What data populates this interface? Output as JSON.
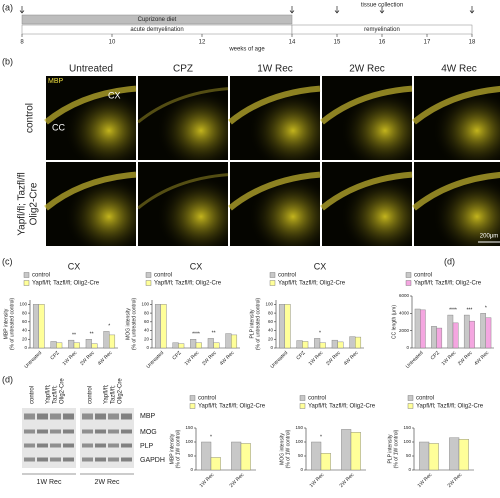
{
  "panel_labels": [
    "(a)",
    "(b)",
    "(c)",
    "(d)",
    "(d)"
  ],
  "timeline": {
    "diet": "Cuprizone diet",
    "phase1": "acute demyelination",
    "phase2": "remyelination",
    "collection": "tissue collection",
    "xlabel": "weeks of age",
    "xlim": [
      8,
      18
    ],
    "xticks": [
      8,
      10,
      12,
      14,
      15,
      16,
      17,
      18
    ],
    "arrows": [
      8,
      14,
      15,
      16,
      18
    ]
  },
  "images": {
    "columns": [
      "Untreated",
      "CPZ",
      "1W Rec",
      "2W Rec",
      "4W Rec"
    ],
    "rows": [
      "control",
      "Yapfl/fl; Tazfl/fl",
      "Olig2-Cre"
    ],
    "stain": "MBP",
    "regions": [
      "CX",
      "CC"
    ],
    "scale_bar": "200μm"
  },
  "chart_data": [
    {
      "type": "bar",
      "title": "CX",
      "ylabel": [
        "MBP intensity",
        "(% of untreated control)"
      ],
      "categories": [
        "Untreated",
        "CPZ",
        "1W Rec",
        "2W Rec",
        "4W Rec"
      ],
      "series": [
        {
          "name": "control",
          "color": "#c8c8c8",
          "values": [
            100,
            15,
            18,
            20,
            38
          ]
        },
        {
          "name": "Yapfl/fl; Tazfl/fl; Olig2-Cre",
          "color": "#ffff99",
          "values": [
            100,
            12,
            12,
            10,
            30
          ]
        }
      ],
      "ylim": [
        0,
        110
      ],
      "yticks": [
        0,
        20,
        40,
        60,
        80,
        100
      ],
      "annotations": [
        {
          "text": "**",
          "category": "1W Rec"
        },
        {
          "text": "**",
          "category": "2W Rec"
        },
        {
          "text": "*",
          "category": "4W Rec"
        }
      ]
    },
    {
      "type": "bar",
      "title": "CX",
      "ylabel": [
        "MOG intensity",
        "(% of untreated control)"
      ],
      "categories": [
        "Untreated",
        "CPZ",
        "1W Rec",
        "2W Rec",
        "4W Rec"
      ],
      "series": [
        {
          "name": "control",
          "color": "#c8c8c8",
          "values": [
            100,
            12,
            20,
            22,
            33
          ]
        },
        {
          "name": "Yapfl/fl; Tazfl/fl; Olig2-Cre",
          "color": "#ffff99",
          "values": [
            100,
            10,
            12,
            12,
            30
          ]
        }
      ],
      "ylim": [
        0,
        110
      ],
      "yticks": [
        0,
        20,
        40,
        60,
        80,
        100
      ],
      "annotations": [
        {
          "text": "****",
          "category": "1W Rec"
        },
        {
          "text": "**",
          "category": "2W Rec"
        }
      ]
    },
    {
      "type": "bar",
      "title": "CX",
      "ylabel": [
        "PLP intensity",
        "(% of untreated control)"
      ],
      "categories": [
        "Untreated",
        "CPZ",
        "1W Rec",
        "2W Rec",
        "4W Rec"
      ],
      "series": [
        {
          "name": "control",
          "color": "#c8c8c8",
          "values": [
            100,
            17,
            22,
            18,
            26
          ]
        },
        {
          "name": "Yapfl/fl; Tazfl/fl; Olig2-Cre",
          "color": "#ffff99",
          "values": [
            100,
            15,
            12,
            14,
            25
          ]
        }
      ],
      "ylim": [
        0,
        110
      ],
      "yticks": [
        0,
        20,
        40,
        60,
        80,
        100
      ],
      "annotations": [
        {
          "text": "*",
          "category": "1W Rec"
        }
      ]
    },
    {
      "type": "bar",
      "ylabel": [
        "CC length (μm)"
      ],
      "categories": [
        "Untreated",
        "CPZ",
        "1W Rec",
        "2W Rec",
        "4W Rec"
      ],
      "series": [
        {
          "name": "control",
          "color": "#c8c8c8",
          "values": [
            4500,
            2500,
            3800,
            3800,
            4000
          ]
        },
        {
          "name": "Yapfl/fl; Tazfl/fl; Olig2-Cre",
          "color": "#f4a6e0",
          "values": [
            4400,
            2300,
            2900,
            3100,
            3500
          ]
        }
      ],
      "ylim": [
        0,
        6000
      ],
      "yticks": [
        0,
        2000,
        4000,
        6000
      ],
      "annotations": [
        {
          "text": "****",
          "category": "1W Rec"
        },
        {
          "text": "***",
          "category": "2W Rec"
        },
        {
          "text": "*",
          "category": "4W Rec"
        }
      ]
    },
    {
      "type": "bar",
      "ylabel": [
        "MBP intensity",
        "(% of 1W control)"
      ],
      "categories": [
        "1W Rec",
        "2W Rec"
      ],
      "series": [
        {
          "name": "control",
          "color": "#c8c8c8",
          "values": [
            100,
            100
          ]
        },
        {
          "name": "Yapfl/fl; Tazfl/fl; Olig2-Cre",
          "color": "#ffff99",
          "values": [
            45,
            95
          ]
        }
      ],
      "ylim": [
        0,
        150
      ],
      "yticks": [
        0,
        50,
        100,
        150
      ],
      "annotations": [
        {
          "text": "*",
          "category": "1W Rec"
        }
      ]
    },
    {
      "type": "bar",
      "ylabel": [
        "MOG intensity",
        "(% of 1W control)"
      ],
      "categories": [
        "1W Rec",
        "2W Rec"
      ],
      "series": [
        {
          "name": "control",
          "color": "#c8c8c8",
          "values": [
            100,
            145
          ]
        },
        {
          "name": "Yapfl/fl; Tazfl/fl; Olig2-Cre",
          "color": "#ffff99",
          "values": [
            60,
            135
          ]
        }
      ],
      "ylim": [
        0,
        150
      ],
      "yticks": [
        0,
        50,
        100,
        150
      ],
      "annotations": [
        {
          "text": "*",
          "category": "1W Rec"
        }
      ]
    },
    {
      "type": "bar",
      "ylabel": [
        "PLP intensity",
        "(% of 1W control)"
      ],
      "categories": [
        "1W Rec",
        "2W Rec"
      ],
      "series": [
        {
          "name": "control",
          "color": "#c8c8c8",
          "values": [
            100,
            115
          ]
        },
        {
          "name": "Yapfl/fl; Tazfl/fl; Olig2-Cre",
          "color": "#ffff99",
          "values": [
            95,
            110
          ]
        }
      ],
      "ylim": [
        0,
        150
      ],
      "yticks": [
        0,
        50,
        100,
        150
      ],
      "annotations": []
    }
  ],
  "blot": {
    "lanes": [
      "control",
      "Yapfl/fl;",
      "Tazfl/fl;",
      "Olig2-Cre"
    ],
    "bands": [
      "MBP",
      "MOG",
      "PLP",
      "GAPDH"
    ],
    "groups": [
      "1W Rec",
      "2W Rec"
    ]
  }
}
